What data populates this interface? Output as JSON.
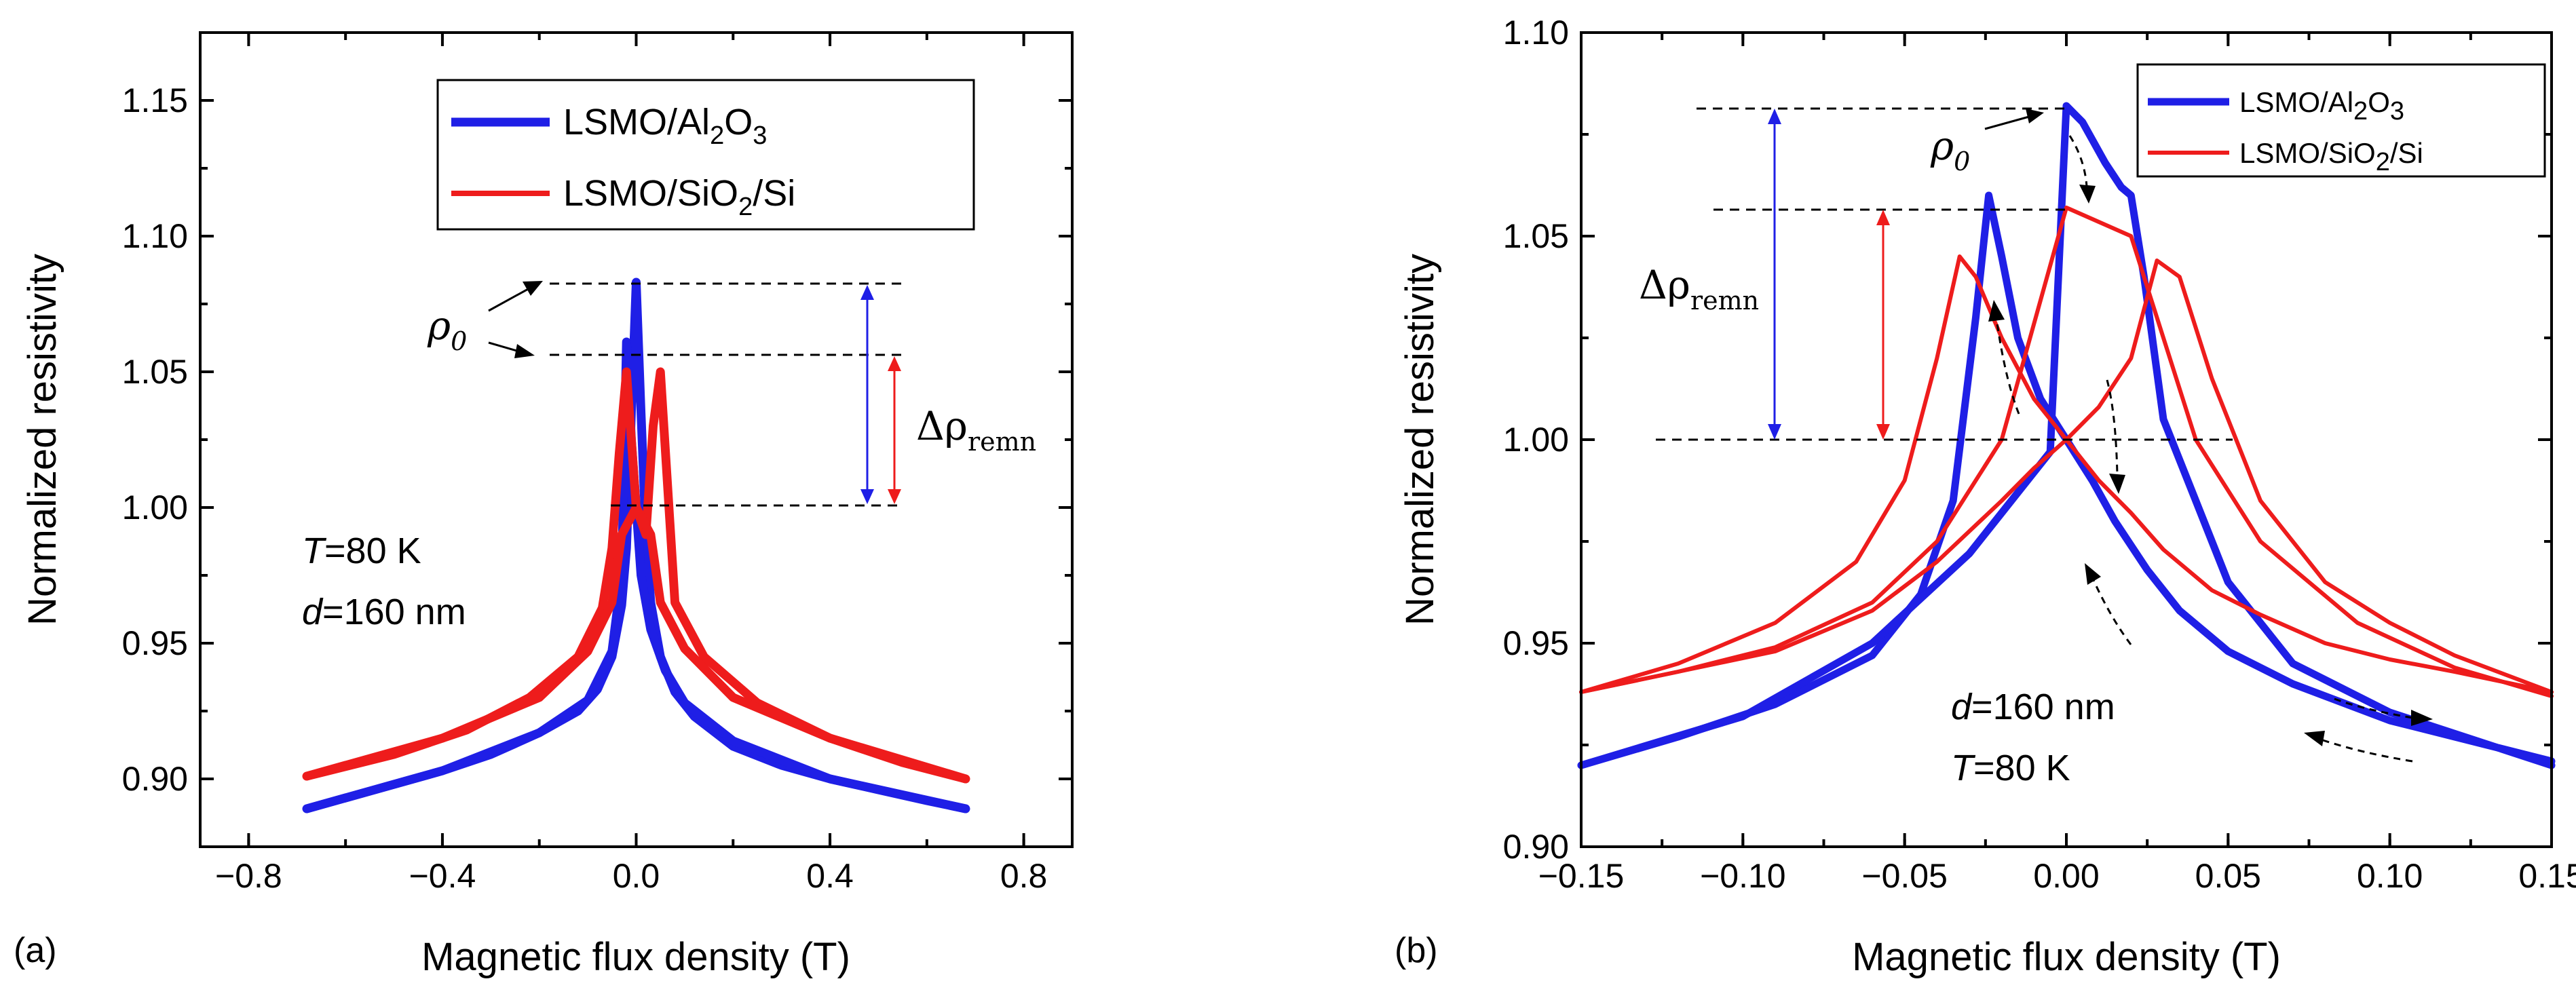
{
  "colors": {
    "blue": "#1f1fe6",
    "red": "#ee1c1c",
    "black": "#000000"
  },
  "chart_data": [
    {
      "type": "line",
      "panel_label": "(a)",
      "xlabel": "Magnetic flux density (T)",
      "ylabel": "Normalized resistivity",
      "xlim": [
        -0.9,
        0.9
      ],
      "ylim": [
        0.875,
        1.175
      ],
      "xticks": [
        -0.8,
        -0.4,
        0.0,
        0.4,
        0.8
      ],
      "xtick_labels": [
        "−0.8",
        "−0.4",
        "0.0",
        "0.4",
        "0.8"
      ],
      "yticks": [
        0.9,
        0.95,
        1.0,
        1.05,
        1.1,
        1.15
      ],
      "ytick_labels": [
        "0.90",
        "0.95",
        "1.00",
        "1.05",
        "1.10",
        "1.15"
      ],
      "legend": {
        "placement": "top-center",
        "entries": [
          {
            "name": "LSMO/Al",
            "sub": "2",
            "rest": "O",
            "sub2": "3",
            "rest2": "",
            "color": "#1f1fe6"
          },
          {
            "name": "LSMO/SiO",
            "sub": "2",
            "rest": "/Si",
            "sub2": "",
            "rest2": "",
            "color": "#ee1c1c"
          }
        ]
      },
      "annotations": {
        "temperature_var": "T",
        "temperature_value": "=80 K",
        "thickness_var": "d",
        "thickness_value": "=160 nm",
        "rho_symbol": "ρ",
        "rho_sub": "0",
        "delta_symbol": "Δρ",
        "delta_sub": "remn"
      },
      "reference_levels": [
        1.083,
        1.057,
        1.0
      ],
      "series": [
        {
          "name": "LSMO/Al2O3",
          "color": "#1f1fe6",
          "width": 13,
          "segments": [
            {
              "x": [
                -0.68,
                -0.6,
                -0.5,
                -0.4,
                -0.3,
                -0.2,
                -0.12,
                -0.08,
                -0.05,
                -0.03,
                -0.02,
                -0.01,
                0.0,
                0.01,
                0.02,
                0.03,
                0.05,
                0.08,
                0.12,
                0.2,
                0.3,
                0.4,
                0.5,
                0.6,
                0.68
              ],
              "y": [
                0.889,
                0.893,
                0.898,
                0.903,
                0.909,
                0.917,
                0.925,
                0.933,
                0.945,
                0.964,
                0.985,
                1.035,
                1.083,
                1.035,
                0.99,
                0.965,
                0.945,
                0.932,
                0.923,
                0.912,
                0.905,
                0.9,
                0.896,
                0.892,
                0.889
              ]
            },
            {
              "x": [
                -0.68,
                -0.4,
                -0.2,
                -0.1,
                -0.05,
                -0.03,
                -0.02,
                -0.01,
                0.0,
                0.01,
                0.03,
                0.06,
                0.1,
                0.2,
                0.4,
                0.68
              ],
              "y": [
                0.889,
                0.903,
                0.917,
                0.929,
                0.947,
                0.975,
                1.061,
                1.025,
                1.0,
                0.975,
                0.955,
                0.94,
                0.928,
                0.914,
                0.9,
                0.889
              ]
            }
          ]
        },
        {
          "name": "LSMO/SiO2/Si",
          "color": "#ee1c1c",
          "width": 13,
          "segments": [
            {
              "x": [
                -0.68,
                -0.5,
                -0.35,
                -0.22,
                -0.12,
                -0.07,
                -0.05,
                -0.035,
                -0.02,
                0.0,
                0.02,
                0.035,
                0.05,
                0.08,
                0.14,
                0.25,
                0.4,
                0.55,
                0.68
              ],
              "y": [
                0.901,
                0.909,
                0.918,
                0.93,
                0.945,
                0.963,
                0.985,
                1.02,
                1.05,
                1.0,
                0.99,
                1.03,
                1.05,
                0.965,
                0.945,
                0.928,
                0.915,
                0.906,
                0.9
              ]
            },
            {
              "x": [
                -0.68,
                -0.4,
                -0.2,
                -0.1,
                -0.05,
                -0.03,
                0.0,
                0.03,
                0.05,
                0.1,
                0.2,
                0.4,
                0.68
              ],
              "y": [
                0.901,
                0.915,
                0.93,
                0.947,
                0.965,
                0.99,
                1.0,
                0.99,
                0.965,
                0.948,
                0.93,
                0.915,
                0.9
              ]
            }
          ]
        }
      ]
    },
    {
      "type": "line",
      "panel_label": "(b)",
      "xlabel": "Magnetic flux density (T)",
      "ylabel": "Normalized resistivity",
      "xlim": [
        -0.15,
        0.15
      ],
      "ylim": [
        0.9,
        1.1
      ],
      "xticks": [
        -0.15,
        -0.1,
        -0.05,
        0.0,
        0.05,
        0.1,
        0.15
      ],
      "xtick_labels": [
        "−0.15",
        "−0.10",
        "−0.05",
        "0.00",
        "0.05",
        "0.10",
        "0.15"
      ],
      "yticks": [
        0.9,
        0.95,
        1.0,
        1.05,
        1.1
      ],
      "ytick_labels": [
        "0.90",
        "0.95",
        "1.00",
        "1.05",
        "1.10"
      ],
      "legend": {
        "placement": "top-right",
        "entries": [
          {
            "name": "LSMO/Al",
            "sub": "2",
            "rest": "O",
            "sub2": "3",
            "rest2": "",
            "color": "#1f1fe6"
          },
          {
            "name": "LSMO/SiO",
            "sub": "2",
            "rest": "/Si",
            "sub2": "",
            "rest2": "",
            "color": "#ee1c1c"
          }
        ]
      },
      "annotations": {
        "temperature_var": "T",
        "temperature_value": "=80 K",
        "thickness_var": "d",
        "thickness_value": "=160 nm",
        "rho_symbol": "ρ",
        "rho_sub": "0",
        "delta_symbol": "Δρ",
        "delta_sub": "remn"
      },
      "reference_levels": [
        1.082,
        1.057,
        1.0
      ],
      "series": [
        {
          "name": "LSMO/Al2O3",
          "color": "#1f1fe6",
          "width": 11,
          "segments": [
            {
              "x": [
                -0.15,
                -0.12,
                -0.09,
                -0.06,
                -0.045,
                -0.035,
                -0.028,
                -0.024,
                -0.02,
                -0.015,
                -0.008,
                0.0,
                0.008,
                0.015,
                0.025,
                0.035,
                0.05,
                0.07,
                0.1,
                0.13,
                0.15
              ],
              "y": [
                0.92,
                0.927,
                0.935,
                0.947,
                0.962,
                0.985,
                1.03,
                1.06,
                1.045,
                1.025,
                1.01,
                1.0,
                0.99,
                0.98,
                0.968,
                0.958,
                0.948,
                0.94,
                0.931,
                0.925,
                0.921
              ]
            },
            {
              "x": [
                -0.15,
                -0.1,
                -0.06,
                -0.03,
                -0.015,
                -0.005,
                0.0,
                0.005,
                0.012,
                0.017,
                0.02,
                0.024,
                0.03,
                0.04,
                0.05,
                0.07,
                0.1,
                0.15
              ],
              "y": [
                0.92,
                0.932,
                0.95,
                0.972,
                0.987,
                0.997,
                1.082,
                1.078,
                1.068,
                1.062,
                1.06,
                1.04,
                1.005,
                0.985,
                0.965,
                0.945,
                0.933,
                0.92
              ]
            }
          ]
        },
        {
          "name": "LSMO/SiO2/Si",
          "color": "#ee1c1c",
          "width": 6,
          "segments": [
            {
              "x": [
                -0.15,
                -0.12,
                -0.09,
                -0.065,
                -0.05,
                -0.04,
                -0.033,
                -0.028,
                -0.02,
                -0.01,
                0.0,
                0.01,
                0.02,
                0.03,
                0.045,
                0.06,
                0.08,
                0.1,
                0.12,
                0.15
              ],
              "y": [
                0.938,
                0.945,
                0.955,
                0.97,
                0.99,
                1.02,
                1.045,
                1.04,
                1.025,
                1.01,
                1.0,
                0.99,
                0.982,
                0.973,
                0.963,
                0.957,
                0.95,
                0.946,
                0.943,
                0.938
              ]
            },
            {
              "x": [
                -0.15,
                -0.12,
                -0.09,
                -0.06,
                -0.04,
                -0.02,
                -0.01,
                0.0,
                0.01,
                0.02,
                0.028,
                0.035,
                0.045,
                0.06,
                0.08,
                0.1,
                0.12,
                0.15
              ],
              "y": [
                0.938,
                0.943,
                0.948,
                0.958,
                0.97,
                0.985,
                0.993,
                1.0,
                1.008,
                1.02,
                1.044,
                1.04,
                1.015,
                0.985,
                0.965,
                0.955,
                0.947,
                0.938
              ]
            },
            {
              "x": [
                -0.15,
                -0.12,
                -0.09,
                -0.06,
                -0.04,
                -0.02,
                0.0,
                0.02,
                0.04,
                0.06,
                0.09,
                0.12,
                0.15
              ],
              "y": [
                0.938,
                0.943,
                0.949,
                0.96,
                0.975,
                1.0,
                1.057,
                1.05,
                1.0,
                0.975,
                0.955,
                0.944,
                0.937
              ]
            }
          ]
        }
      ]
    }
  ]
}
